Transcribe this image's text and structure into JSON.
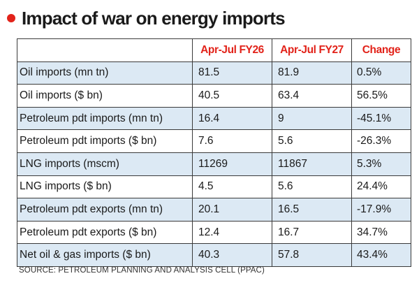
{
  "colors": {
    "accent": "#e2231a",
    "row_shade": "#dce9f4",
    "border": "#3a3a3a"
  },
  "chart_data": {
    "type": "table",
    "title": "Impact of war on energy imports",
    "columns": [
      "",
      "Apr-Jul FY26",
      "Apr-Jul FY27",
      "Change"
    ],
    "rows": [
      {
        "label": "Oil imports (mn tn)",
        "fy26": "81.5",
        "fy27": "81.9",
        "change": "0.5%"
      },
      {
        "label": "Oil imports ($ bn)",
        "fy26": "40.5",
        "fy27": "63.4",
        "change": "56.5%"
      },
      {
        "label": "Petroleum pdt imports (mn tn)",
        "fy26": "16.4",
        "fy27": "9",
        "change": "-45.1%"
      },
      {
        "label": "Petroleum pdt imports ($ bn)",
        "fy26": "7.6",
        "fy27": "5.6",
        "change": "-26.3%"
      },
      {
        "label": "LNG imports (mscm)",
        "fy26": "11269",
        "fy27": "11867",
        "change": "5.3%"
      },
      {
        "label": "LNG imports ($ bn)",
        "fy26": "4.5",
        "fy27": "5.6",
        "change": "24.4%"
      },
      {
        "label": "Petroleum pdt exports (mn tn)",
        "fy26": "20.1",
        "fy27": "16.5",
        "change": "-17.9%"
      },
      {
        "label": "Petroleum pdt exports ($ bn)",
        "fy26": "12.4",
        "fy27": "16.7",
        "change": "34.7%"
      },
      {
        "label": "Net oil & gas imports ($ bn)",
        "fy26": "40.3",
        "fy27": "57.8",
        "change": "43.4%"
      }
    ],
    "source": "SOURCE: PETROLEUM PLANNING AND ANALYSIS CELL (PPAC)"
  }
}
